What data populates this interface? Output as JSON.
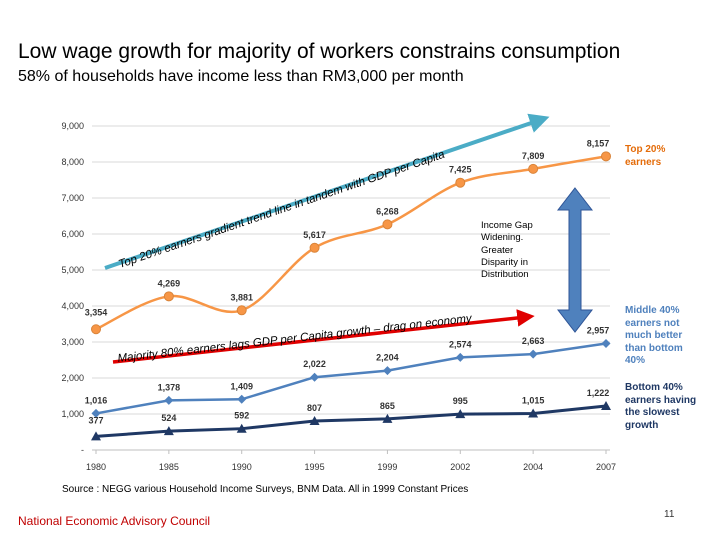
{
  "title": "Low wage growth for majority of workers constrains consumption",
  "subtitle": "58% of households have income less than RM3,000 per month",
  "chart_data": {
    "type": "line",
    "categories": [
      "1980",
      "1985",
      "1990",
      "1995",
      "1999",
      "2002",
      "2004",
      "2007"
    ],
    "ylim": [
      0,
      9000
    ],
    "yticks": [
      0,
      1000,
      2000,
      3000,
      4000,
      5000,
      6000,
      7000,
      8000,
      9000
    ],
    "ytick_labels": [
      "-",
      "1,000",
      "2,000",
      "3,000",
      "4,000",
      "5,000",
      "6,000",
      "7,000",
      "8,000",
      "9,000"
    ],
    "grid": true,
    "series": [
      {
        "key": "top20",
        "values": [
          3354,
          4269,
          3881,
          5617,
          6268,
          7425,
          7809,
          8157
        ],
        "labels": [
          "3,354",
          "4,269",
          "3,881",
          "5,617",
          "6,268",
          "7,425",
          "7,809",
          "8,157"
        ],
        "color": "#f79646",
        "marker": "circle",
        "smooth": true
      },
      {
        "key": "middle40",
        "values": [
          1016,
          1378,
          1409,
          2022,
          2204,
          2574,
          2663,
          2957
        ],
        "labels": [
          "1,016",
          "1,378",
          "1,409",
          "2,022",
          "2,204",
          "2,574",
          "2,663",
          "2,957"
        ],
        "color": "#4f81bd",
        "marker": "diamond"
      },
      {
        "key": "bottom40",
        "values": [
          377,
          524,
          592,
          807,
          865,
          995,
          1015,
          1222
        ],
        "labels": [
          "377",
          "524",
          "592",
          "807",
          "865",
          "995",
          "1,015",
          "1,222"
        ],
        "color": "#1f3864",
        "marker": "triangle"
      }
    ],
    "annotations": {
      "top_trend": "Top 20% earners gradient trend line in tandem with GDP per Capita",
      "majority_trend": "Majority 80% earners lags GDP per Capita growth – drag on economy",
      "gap_lines": [
        "Income Gap",
        "Widening.",
        "Greater",
        "Disparity in",
        "Distribution"
      ],
      "top_label": [
        "Top 20%",
        "earners"
      ],
      "middle_label": [
        "Middle 40%",
        "earners not",
        "much better",
        "than bottom",
        "40%"
      ],
      "bottom_label": [
        "Bottom 40%",
        "earners having",
        "the slowest",
        "growth"
      ]
    },
    "colors": {
      "top_arrow": "#4bacc6",
      "red_arrow": "#e00000",
      "gap_arrow": "#4f81bd"
    }
  },
  "source": "Source : NEGG various Household Income Surveys, BNM Data. All in 1999 Constant Prices",
  "footer": "National Economic Advisory Council",
  "page_number": "11"
}
